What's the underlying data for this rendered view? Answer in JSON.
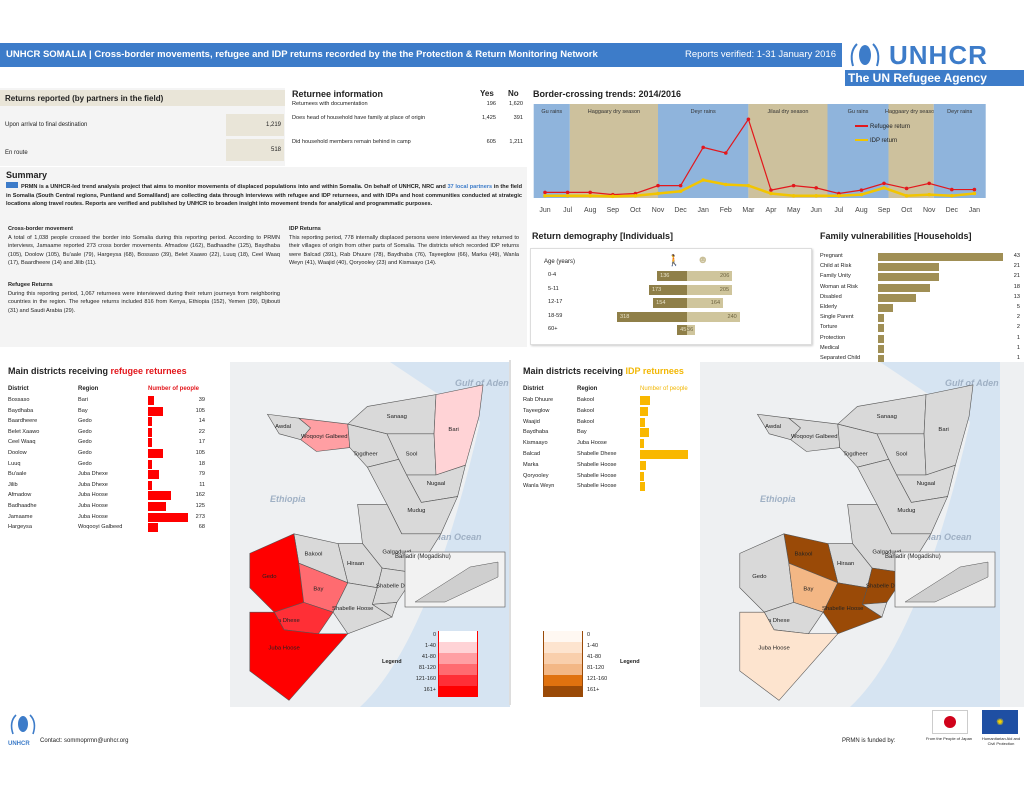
{
  "header": {
    "title": "UNHCR SOMALIA | Cross-border movements, refugee and IDP returns recorded by the the Protection & Return Monitoring Network",
    "reports_verified": "Reports verified: 1-31 January 2016"
  },
  "logo": {
    "brand": "UNHCR",
    "tagline": "The UN Refugee Agency"
  },
  "returns_reported": {
    "title": "Returns reported (by partners in the field)",
    "rows": [
      {
        "label": "Upon arrival to final destination",
        "value": "1,219"
      },
      {
        "label": "En route",
        "value": "518"
      }
    ]
  },
  "returnee_info": {
    "title": "Returnee information",
    "yes": "Yes",
    "no": "No",
    "rows": [
      {
        "label": "Returnees with documentation",
        "yes": "196",
        "no": "1,620"
      },
      {
        "label": "Does head of household have family at place of origin",
        "yes": "1,425",
        "no": "391"
      },
      {
        "label": "Did household members remain behind in camp",
        "yes": "605",
        "no": "1,211"
      }
    ]
  },
  "summary": {
    "title": "Summary",
    "text_a": "PRMN is a UNHCR-led trend analysis project that aims to monitor movements of displaced populations into and within Somalia. On behalf of UNHCR, NRC and ",
    "link": "37 local partners",
    "text_b": " in the field in Somalia (South Central regions, Puntland and Somaliland) are collecting data through interviews with refugee and IDP returnees, and with IDPs and host communities conducted at strategic locations along travel routes. Reports are verified and published by UNHCR to broaden insight into movement trends for analytical and programmatic purposes."
  },
  "cross_border": {
    "title": "Cross-border movement",
    "text": "A total of 1,038 people crossed the border into Somalia during this reporting period. According to PRMN interviews, Jamaame reported 273 cross border movements. Afmadow (162), Badhaadhe (125), Baydhaba (105), Doolow (105), Bu'aale (79), Hargeysa (68), Bossaso (39), Belet Xaawo (22), Luuq (18), Ceel Waaq (17), Baardheere (14) and Jilib (11)."
  },
  "refugee_returns": {
    "title": "Refugee Returns",
    "text": "During this reporting period, 1,067 returnees were interviewed during their return journeys from neighboring countries in the region. The refugee returns included 816 from Kenya, Ethiopia (152), Yemen (39), Djibouti (31) and Saudi Arabia (29)."
  },
  "idp_returns": {
    "title": "IDP Returns",
    "text": "This reporting period, 778 internally displaced persons were interviewed as they returned to their villages of origin from other parts of Somalia. The districts which recorded IDP returns were Balcad (391), Rab Dhuure (78), Baydhaba (76), Tayeeglow (66), Marka (49), Wanla Weyn (41), Waajid (40), Qoryooley (23) and Kismaayo (14)."
  },
  "chart_data": [
    {
      "type": "line",
      "title": "Border-crossing trends: 2014/2016",
      "categories": [
        "Jun",
        "Jul",
        "Aug",
        "Sep",
        "Oct",
        "Nov",
        "Dec",
        "Jan",
        "Feb",
        "Mar",
        "Apr",
        "May",
        "Jun",
        "Jul",
        "Aug",
        "Sep",
        "Oct",
        "Nov",
        "Dec",
        "Jan"
      ],
      "series": [
        {
          "name": "Refugee return",
          "color": "#e3171c",
          "values": [
            50,
            50,
            50,
            30,
            40,
            110,
            110,
            450,
            400,
            700,
            70,
            110,
            90,
            40,
            70,
            130,
            85,
            130,
            75,
            75
          ]
        },
        {
          "name": "IDP return",
          "color": "#f2c500",
          "values": [
            20,
            20,
            20,
            15,
            20,
            40,
            60,
            160,
            120,
            110,
            40,
            20,
            20,
            20,
            30,
            90,
            20,
            30,
            20,
            40
          ]
        }
      ],
      "seasons": [
        {
          "label": "Gu rains",
          "start": -0.5,
          "end": 1.1,
          "kind": "rain"
        },
        {
          "label": "Haggaary dry season",
          "start": 1.1,
          "end": 5,
          "kind": "dry"
        },
        {
          "label": "Deyr rains",
          "start": 5,
          "end": 9,
          "kind": "rain"
        },
        {
          "label": "Jilaal dry season",
          "start": 9,
          "end": 12.5,
          "kind": "dry"
        },
        {
          "label": "Gu rains",
          "start": 12.5,
          "end": 15.2,
          "kind": "rain"
        },
        {
          "label": "Haggaary dry season",
          "start": 15.2,
          "end": 17.2,
          "kind": "dry"
        },
        {
          "label": "Deyr rains",
          "start": 17.2,
          "end": 19.5,
          "kind": "rain"
        }
      ],
      "ylim": [
        0,
        800
      ],
      "legend": "top-right"
    },
    {
      "type": "bar",
      "title": "Return demography [Individuals]",
      "ylabel": "Age (years)",
      "categories": [
        "0-4",
        "5-11",
        "12-17",
        "18-59",
        "60+"
      ],
      "series": [
        {
          "name": "Male",
          "values": [
            136,
            173,
            154,
            318,
            45
          ]
        },
        {
          "name": "Female",
          "values": [
            206,
            205,
            164,
            240,
            36
          ]
        }
      ]
    },
    {
      "type": "bar",
      "title": "Family vulnerabilities [Households]",
      "categories": [
        "Pregnant",
        "Child at Risk",
        "Family Unity",
        "Woman at Risk",
        "Disabled",
        "Elderly",
        "Single Parent",
        "Torture",
        "Protection",
        "Medical",
        "Separated Child"
      ],
      "values": [
        43,
        21,
        21,
        18,
        13,
        5,
        2,
        2,
        1,
        1,
        1
      ]
    }
  ],
  "refugee_districts": {
    "title_a": "Main districts receiving ",
    "title_b": "refugee returnees",
    "cols": [
      "District",
      "Region",
      "Number of people"
    ],
    "rows": [
      {
        "district": "Bossaso",
        "region": "Bari",
        "value": 39
      },
      {
        "district": "Baydhaba",
        "region": "Bay",
        "value": 105
      },
      {
        "district": "Baardheere",
        "region": "Gedo",
        "value": 14
      },
      {
        "district": "Belet Xaawo",
        "region": "Gedo",
        "value": 22
      },
      {
        "district": "Ceel Waaq",
        "region": "Gedo",
        "value": 17
      },
      {
        "district": "Doolow",
        "region": "Gedo",
        "value": 105
      },
      {
        "district": "Luuq",
        "region": "Gedo",
        "value": 18
      },
      {
        "district": "Bu'aale",
        "region": "Juba Dhexe",
        "value": 79
      },
      {
        "district": "Jilib",
        "region": "Juba Dhexe",
        "value": 11
      },
      {
        "district": "Afmadow",
        "region": "Juba Hoose",
        "value": 162
      },
      {
        "district": "Badhaadhe",
        "region": "Juba Hoose",
        "value": 125
      },
      {
        "district": "Jamaame",
        "region": "Juba Hoose",
        "value": 273
      },
      {
        "district": "Hargeysa",
        "region": "Woqooyi Galbeed",
        "value": 68
      }
    ]
  },
  "idp_districts": {
    "title_a": "Main districts receiving ",
    "title_b": "IDP returnees",
    "cols": [
      "District",
      "Region",
      "Number of people"
    ],
    "rows": [
      {
        "district": "Rab Dhuure",
        "region": "Bakool",
        "value": 78
      },
      {
        "district": "Tayeeglow",
        "region": "Bakool",
        "value": 66
      },
      {
        "district": "Waajid",
        "region": "Bakool",
        "value": 40
      },
      {
        "district": "Baydhaba",
        "region": "Bay",
        "value": 76
      },
      {
        "district": "Kismaayo",
        "region": "Juba Hoose",
        "value": 14
      },
      {
        "district": "Balcad",
        "region": "Shabelle Dhexe",
        "value": 391
      },
      {
        "district": "Marka",
        "region": "Shabelle Hoose",
        "value": 49
      },
      {
        "district": "Qoryooley",
        "region": "Shabelle Hoose",
        "value": 23
      },
      {
        "district": "Wanla Weyn",
        "region": "Shabelle Hoose",
        "value": 41
      }
    ]
  },
  "map": {
    "gulf": "Gulf of Aden",
    "ethiopia": "Ethiopia",
    "ocean": "Indian Ocean",
    "kenya": "Kenya",
    "inset": "Banadir (Mogadishu)",
    "legend_title": "Legend",
    "classes": [
      "0",
      "1-40",
      "41-80",
      "81-120",
      "121-160",
      "161+"
    ],
    "red_scale": [
      "#ffffff",
      "#ffd3d6",
      "#ff9fa3",
      "#ff6b70",
      "#ff2f36",
      "#ff0000"
    ],
    "brown_scale": [
      "#fff8f2",
      "#fde4cf",
      "#f9cfac",
      "#f3b785",
      "#e0720f",
      "#9a4a07"
    ],
    "regions": [
      "Awdal",
      "Woqooyi Galbeed",
      "Togdheer",
      "Sanaag",
      "Sool",
      "Bari",
      "Nugaal",
      "Mudug",
      "Galgaduud",
      "Hiraan",
      "Bakool",
      "Gedo",
      "Bay",
      "Shabelle Dhexe",
      "Banadir (Mogadishu)",
      "Shabelle Hoose",
      "Juba Dhexe",
      "Juba Hoose"
    ]
  },
  "footer": {
    "contact": "Contact: sommoprmn@unhcr.org",
    "funded_by": "PRMN is funded by:",
    "japan": "From the People of Japan",
    "eu": "Humanitarian Aid and Civil Protection",
    "logo_text": "UNHCR"
  }
}
